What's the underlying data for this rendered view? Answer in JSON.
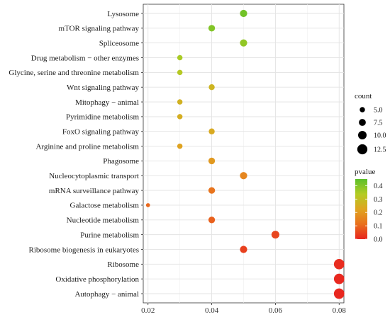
{
  "chart_data": {
    "type": "scatter",
    "subtype": "dot-plot",
    "xlim": [
      0.0185,
      0.0815
    ],
    "x_ticks": [
      0.02,
      0.04,
      0.06,
      0.08
    ],
    "x_tick_labels": [
      "0.02",
      "0.04",
      "0.06",
      "0.08"
    ],
    "grid": true,
    "categories": [
      "Lysosome",
      "mTOR signaling pathway",
      "Spliceosome",
      "Drug metabolism − other enzymes",
      "Glycine, serine and threonine metabolism",
      "Wnt signaling pathway",
      "Mitophagy − animal",
      "Pyrimidine metabolism",
      "FoxO signaling pathway",
      "Arginine and proline metabolism",
      "Phagosome",
      "Nucleocytoplasmic transport",
      "mRNA surveillance pathway",
      "Galactose metabolism",
      "Nucleotide metabolism",
      "Purine metabolism",
      "Ribosome biogenesis in eukaryotes",
      "Ribosome",
      "Oxidative phosphorylation",
      "Autophagy − animal"
    ],
    "x": [
      0.05,
      0.04,
      0.05,
      0.03,
      0.03,
      0.04,
      0.03,
      0.03,
      0.04,
      0.03,
      0.04,
      0.05,
      0.04,
      0.02,
      0.04,
      0.06,
      0.05,
      0.08,
      0.08,
      0.08
    ],
    "count": [
      8,
      7,
      8,
      5,
      5,
      6,
      5,
      5,
      6,
      5,
      7,
      8,
      7,
      3,
      7,
      9,
      8,
      13,
      13,
      13
    ],
    "pvalue": [
      0.42,
      0.4,
      0.38,
      0.35,
      0.33,
      0.27,
      0.26,
      0.25,
      0.24,
      0.22,
      0.2,
      0.16,
      0.12,
      0.1,
      0.09,
      0.05,
      0.04,
      0.01,
      0.005,
      0.003
    ],
    "legend": {
      "placement": "right",
      "size": {
        "title": "count",
        "values": [
          5.0,
          7.5,
          10.0,
          12.5
        ],
        "labels": [
          "5.0",
          "7.5",
          "10.0",
          "12.5"
        ]
      },
      "color": {
        "title": "pvalue",
        "range": [
          0.0,
          0.45
        ],
        "ticks": [
          0.0,
          0.1,
          0.2,
          0.3,
          0.4
        ],
        "tick_labels": [
          "0.0",
          "0.1",
          "0.2",
          "0.3",
          "0.4"
        ],
        "low_color": "#e8251f",
        "high_color": "#5bbf2a"
      }
    }
  }
}
